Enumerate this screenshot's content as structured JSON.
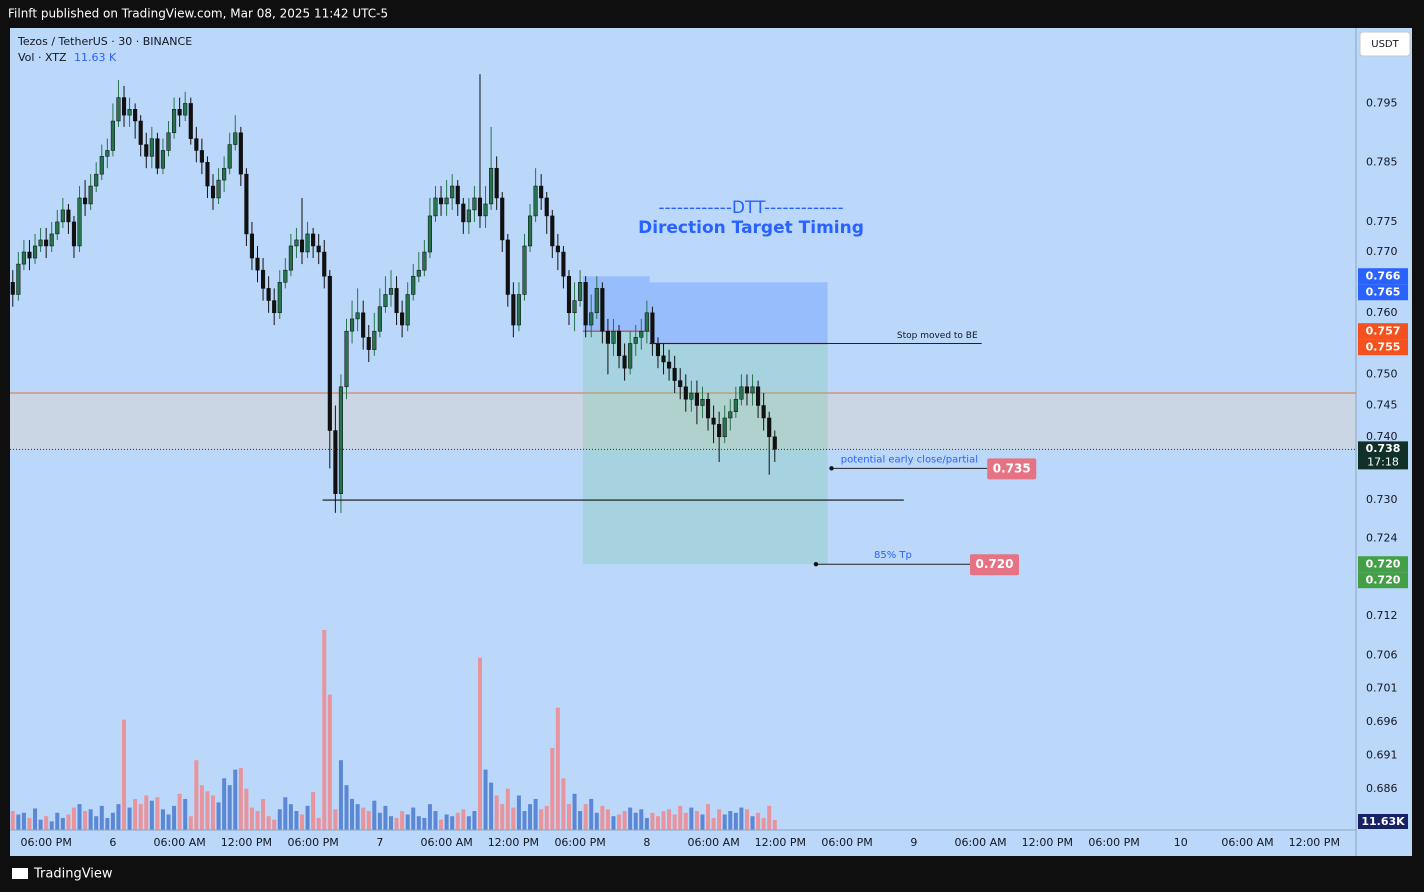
{
  "header": "Filnft published on TradingView.com, Mar 08, 2025 11:42 UTC-5",
  "footer": "TradingView",
  "chart_data": {
    "type": "candlestick",
    "symbol": "Tezos / TetherUS · 30 · BINANCE",
    "volume_legend": "Vol · XTZ",
    "volume_last": "11.63 K",
    "volume_badge": "11.63K",
    "currency": "USDT",
    "dtt_title": "------------DTT-------------",
    "dtt_subtitle": "Direction Target Timing",
    "log_scale": true,
    "ylim": [
      0.68,
      0.808
    ],
    "yticks": [
      0.795,
      0.785,
      0.775,
      {
        "value": 0.77,
        "label": "0.770"
      },
      {
        "value": 0.76,
        "label": "0.760"
      },
      {
        "value": 0.75,
        "label": "0.750"
      },
      0.745,
      {
        "value": 0.74,
        "label": "0.740"
      },
      {
        "value": 0.73,
        "label": "0.730"
      },
      0.724,
      0.712,
      0.706,
      0.701,
      0.696,
      0.691,
      0.686
    ],
    "xlim": [
      -0.5,
      241.5
    ],
    "xticks": [
      {
        "value": 6,
        "label": "06:00 PM"
      },
      {
        "value": 18,
        "label": "6"
      },
      {
        "value": 30,
        "label": "06:00 AM"
      },
      {
        "value": 42,
        "label": "12:00 PM"
      },
      {
        "value": 54,
        "label": "06:00 PM"
      },
      {
        "value": 66,
        "label": "7"
      },
      {
        "value": 78,
        "label": "06:00 AM"
      },
      {
        "value": 90,
        "label": "12:00 PM"
      },
      {
        "value": 102,
        "label": "06:00 PM"
      },
      {
        "value": 114,
        "label": "8"
      },
      {
        "value": 126,
        "label": "06:00 AM"
      },
      {
        "value": 138,
        "label": "12:00 PM"
      },
      {
        "value": 150,
        "label": "06:00 PM"
      },
      {
        "value": 162,
        "label": "9"
      },
      {
        "value": 174,
        "label": "06:00 AM"
      },
      {
        "value": 186,
        "label": "12:00 PM"
      },
      {
        "value": 198,
        "label": "06:00 PM"
      },
      {
        "value": 210,
        "label": "10"
      },
      {
        "value": 222,
        "label": "06:00 AM"
      },
      {
        "value": 234,
        "label": "12:00 PM"
      }
    ],
    "up_color": "#26734d",
    "down_color": "#111111",
    "volume_up_color": "#5b87d4",
    "volume_down_color": "#e8949c",
    "ohlc": [
      [
        0.765,
        0.767,
        0.761,
        0.763
      ],
      [
        0.763,
        0.77,
        0.762,
        0.768
      ],
      [
        0.768,
        0.772,
        0.767,
        0.77
      ],
      [
        0.77,
        0.772,
        0.767,
        0.769
      ],
      [
        0.769,
        0.773,
        0.768,
        0.771
      ],
      [
        0.771,
        0.774,
        0.77,
        0.772
      ],
      [
        0.772,
        0.774,
        0.769,
        0.771
      ],
      [
        0.771,
        0.775,
        0.77,
        0.773
      ],
      [
        0.773,
        0.777,
        0.772,
        0.775
      ],
      [
        0.775,
        0.779,
        0.774,
        0.777
      ],
      [
        0.777,
        0.778,
        0.773,
        0.775
      ],
      [
        0.775,
        0.776,
        0.769,
        0.771
      ],
      [
        0.771,
        0.781,
        0.77,
        0.779
      ],
      [
        0.779,
        0.782,
        0.776,
        0.778
      ],
      [
        0.778,
        0.783,
        0.777,
        0.781
      ],
      [
        0.781,
        0.785,
        0.78,
        0.783
      ],
      [
        0.783,
        0.788,
        0.782,
        0.786
      ],
      [
        0.786,
        0.789,
        0.784,
        0.787
      ],
      [
        0.787,
        0.795,
        0.786,
        0.792
      ],
      [
        0.792,
        0.799,
        0.791,
        0.796
      ],
      [
        0.796,
        0.798,
        0.791,
        0.793
      ],
      [
        0.793,
        0.796,
        0.791,
        0.794
      ],
      [
        0.794,
        0.795,
        0.789,
        0.792
      ],
      [
        0.792,
        0.793,
        0.786,
        0.788
      ],
      [
        0.788,
        0.79,
        0.784,
        0.786
      ],
      [
        0.786,
        0.791,
        0.784,
        0.789
      ],
      [
        0.789,
        0.79,
        0.783,
        0.784
      ],
      [
        0.784,
        0.789,
        0.783,
        0.787
      ],
      [
        0.787,
        0.792,
        0.786,
        0.79
      ],
      [
        0.79,
        0.796,
        0.789,
        0.794
      ],
      [
        0.794,
        0.796,
        0.791,
        0.793
      ],
      [
        0.793,
        0.797,
        0.792,
        0.795
      ],
      [
        0.795,
        0.796,
        0.788,
        0.789
      ],
      [
        0.789,
        0.791,
        0.785,
        0.787
      ],
      [
        0.787,
        0.789,
        0.783,
        0.785
      ],
      [
        0.785,
        0.786,
        0.779,
        0.781
      ],
      [
        0.781,
        0.783,
        0.777,
        0.779
      ],
      [
        0.779,
        0.784,
        0.778,
        0.782
      ],
      [
        0.782,
        0.786,
        0.78,
        0.784
      ],
      [
        0.784,
        0.79,
        0.783,
        0.788
      ],
      [
        0.788,
        0.793,
        0.787,
        0.79
      ],
      [
        0.79,
        0.791,
        0.781,
        0.783
      ],
      [
        0.783,
        0.784,
        0.771,
        0.773
      ],
      [
        0.773,
        0.775,
        0.767,
        0.769
      ],
      [
        0.769,
        0.771,
        0.765,
        0.767
      ],
      [
        0.767,
        0.769,
        0.762,
        0.764
      ],
      [
        0.764,
        0.766,
        0.76,
        0.762
      ],
      [
        0.762,
        0.764,
        0.758,
        0.76
      ],
      [
        0.76,
        0.767,
        0.759,
        0.765
      ],
      [
        0.765,
        0.769,
        0.764,
        0.767
      ],
      [
        0.767,
        0.773,
        0.766,
        0.771
      ],
      [
        0.771,
        0.774,
        0.769,
        0.772
      ],
      [
        0.772,
        0.779,
        0.768,
        0.77
      ],
      [
        0.77,
        0.775,
        0.769,
        0.773
      ],
      [
        0.773,
        0.774,
        0.769,
        0.771
      ],
      [
        0.771,
        0.773,
        0.768,
        0.77
      ],
      [
        0.77,
        0.772,
        0.764,
        0.766
      ],
      [
        0.766,
        0.767,
        0.735,
        0.741
      ],
      [
        0.741,
        0.745,
        0.728,
        0.731
      ],
      [
        0.731,
        0.75,
        0.728,
        0.748
      ],
      [
        0.748,
        0.759,
        0.746,
        0.757
      ],
      [
        0.757,
        0.762,
        0.755,
        0.759
      ],
      [
        0.759,
        0.764,
        0.757,
        0.76
      ],
      [
        0.76,
        0.762,
        0.754,
        0.756
      ],
      [
        0.756,
        0.758,
        0.752,
        0.754
      ],
      [
        0.754,
        0.76,
        0.753,
        0.757
      ],
      [
        0.757,
        0.764,
        0.756,
        0.761
      ],
      [
        0.761,
        0.766,
        0.76,
        0.763
      ],
      [
        0.763,
        0.767,
        0.761,
        0.764
      ],
      [
        0.764,
        0.766,
        0.758,
        0.76
      ],
      [
        0.76,
        0.762,
        0.756,
        0.758
      ],
      [
        0.758,
        0.765,
        0.757,
        0.763
      ],
      [
        0.763,
        0.768,
        0.762,
        0.766
      ],
      [
        0.766,
        0.77,
        0.765,
        0.767
      ],
      [
        0.767,
        0.772,
        0.766,
        0.77
      ],
      [
        0.77,
        0.779,
        0.769,
        0.776
      ],
      [
        0.776,
        0.781,
        0.775,
        0.779
      ],
      [
        0.779,
        0.781,
        0.776,
        0.778
      ],
      [
        0.778,
        0.782,
        0.776,
        0.779
      ],
      [
        0.779,
        0.783,
        0.777,
        0.781
      ],
      [
        0.781,
        0.782,
        0.776,
        0.778
      ],
      [
        0.778,
        0.779,
        0.773,
        0.775
      ],
      [
        0.775,
        0.779,
        0.773,
        0.777
      ],
      [
        0.777,
        0.781,
        0.775,
        0.779
      ],
      [
        0.779,
        0.8,
        0.774,
        0.776
      ],
      [
        0.776,
        0.781,
        0.774,
        0.778
      ],
      [
        0.778,
        0.791,
        0.777,
        0.784
      ],
      [
        0.784,
        0.786,
        0.777,
        0.779
      ],
      [
        0.779,
        0.78,
        0.77,
        0.772
      ],
      [
        0.772,
        0.773,
        0.761,
        0.763
      ],
      [
        0.763,
        0.765,
        0.756,
        0.758
      ],
      [
        0.758,
        0.765,
        0.757,
        0.763
      ],
      [
        0.763,
        0.773,
        0.762,
        0.771
      ],
      [
        0.771,
        0.778,
        0.77,
        0.776
      ],
      [
        0.776,
        0.784,
        0.775,
        0.781
      ],
      [
        0.781,
        0.783,
        0.777,
        0.779
      ],
      [
        0.779,
        0.78,
        0.773,
        0.776
      ],
      [
        0.776,
        0.777,
        0.769,
        0.771
      ],
      [
        0.771,
        0.773,
        0.767,
        0.77
      ],
      [
        0.77,
        0.771,
        0.764,
        0.766
      ],
      [
        0.766,
        0.767,
        0.758,
        0.76
      ],
      [
        0.76,
        0.765,
        0.757,
        0.762
      ],
      [
        0.762,
        0.767,
        0.761,
        0.765
      ],
      [
        0.765,
        0.766,
        0.756,
        0.758
      ],
      [
        0.758,
        0.763,
        0.756,
        0.76
      ],
      [
        0.76,
        0.766,
        0.759,
        0.764
      ],
      [
        0.764,
        0.765,
        0.755,
        0.757
      ],
      [
        0.757,
        0.759,
        0.75,
        0.755
      ],
      [
        0.755,
        0.759,
        0.753,
        0.757
      ],
      [
        0.757,
        0.758,
        0.751,
        0.753
      ],
      [
        0.753,
        0.755,
        0.749,
        0.751
      ],
      [
        0.751,
        0.757,
        0.75,
        0.755
      ],
      [
        0.755,
        0.758,
        0.753,
        0.756
      ],
      [
        0.756,
        0.759,
        0.754,
        0.757
      ],
      [
        0.757,
        0.762,
        0.755,
        0.76
      ],
      [
        0.76,
        0.761,
        0.753,
        0.755
      ],
      [
        0.755,
        0.756,
        0.751,
        0.753
      ],
      [
        0.753,
        0.755,
        0.75,
        0.752
      ],
      [
        0.752,
        0.754,
        0.749,
        0.751
      ],
      [
        0.751,
        0.753,
        0.747,
        0.749
      ],
      [
        0.749,
        0.751,
        0.746,
        0.748
      ],
      [
        0.748,
        0.75,
        0.744,
        0.746
      ],
      [
        0.746,
        0.749,
        0.744,
        0.747
      ],
      [
        0.747,
        0.749,
        0.742,
        0.745
      ],
      [
        0.745,
        0.748,
        0.743,
        0.746
      ],
      [
        0.746,
        0.747,
        0.741,
        0.743
      ],
      [
        0.743,
        0.745,
        0.739,
        0.742
      ],
      [
        0.742,
        0.744,
        0.736,
        0.74
      ],
      [
        0.74,
        0.745,
        0.739,
        0.743
      ],
      [
        0.743,
        0.746,
        0.741,
        0.744
      ],
      [
        0.744,
        0.748,
        0.743,
        0.746
      ],
      [
        0.746,
        0.75,
        0.745,
        0.748
      ],
      [
        0.748,
        0.75,
        0.745,
        0.747
      ],
      [
        0.747,
        0.75,
        0.745,
        0.748
      ],
      [
        0.748,
        0.749,
        0.743,
        0.745
      ],
      [
        0.745,
        0.747,
        0.741,
        0.743
      ],
      [
        0.743,
        0.744,
        0.734,
        0.74
      ],
      [
        0.74,
        0.741,
        0.736,
        0.738
      ]
    ],
    "volume": [
      22,
      18,
      20,
      14,
      25,
      12,
      16,
      10,
      20,
      14,
      18,
      26,
      30,
      22,
      24,
      16,
      28,
      14,
      20,
      30,
      128,
      26,
      36,
      30,
      40,
      34,
      38,
      24,
      18,
      28,
      42,
      36,
      16,
      81,
      52,
      45,
      40,
      32,
      60,
      52,
      70,
      72,
      48,
      26,
      22,
      36,
      16,
      12,
      24,
      38,
      30,
      22,
      18,
      28,
      44,
      14,
      232,
      157,
      24,
      81,
      52,
      36,
      30,
      26,
      22,
      34,
      20,
      28,
      16,
      14,
      22,
      18,
      26,
      16,
      14,
      30,
      22,
      12,
      18,
      16,
      20,
      24,
      16,
      22,
      200,
      70,
      55,
      40,
      30,
      48,
      26,
      40,
      22,
      30,
      36,
      24,
      28,
      95,
      142,
      60,
      30,
      42,
      22,
      30,
      36,
      20,
      28,
      24,
      16,
      18,
      22,
      26,
      20,
      24,
      14,
      20,
      16,
      22,
      24,
      18,
      28,
      20,
      26,
      22,
      18,
      30,
      14,
      24,
      18,
      22,
      20,
      26,
      24,
      16,
      20,
      14,
      28,
      11.63
    ],
    "zone": [
      0.747,
      0.738
    ],
    "levels": [
      {
        "value": 0.747,
        "color": "#e0703c"
      }
    ],
    "support": {
      "value": 0.73,
      "from": 55.7,
      "to": 160.2
    },
    "positions": [
      {
        "from": 102.5,
        "to": 114.5,
        "stop": 0.766,
        "entry": 0.757,
        "target": 0.72
      },
      {
        "from": 114.5,
        "to": 146.5,
        "stop": 0.765,
        "entry": 0.755,
        "target": 0.72
      }
    ],
    "be_line": {
      "text": "Stop moved to BE",
      "value": 0.755,
      "from": 114.5,
      "to": 174.2
    },
    "targets": [
      {
        "text": "potential early close/partial",
        "value": 0.735,
        "label": "0.735",
        "from": 147.2,
        "to": 175.2
      },
      {
        "text": "85% Tp",
        "value": 0.72,
        "label": "0.720",
        "from": 144.4,
        "to": 172.1
      }
    ],
    "price_badges": [
      {
        "value": 0.766,
        "label": "0.766",
        "color": "#2962ff"
      },
      {
        "value": 0.765,
        "label": "0.765",
        "color": "#2962ff"
      },
      {
        "value": 0.757,
        "label": "0.757",
        "color": "#f4511e"
      },
      {
        "value": 0.755,
        "label": "0.755",
        "color": "#f4511e"
      },
      {
        "value": 0.72,
        "label": "0.720",
        "color": "#43a047"
      },
      {
        "value": 0.72,
        "label": "0.720",
        "color": "#43a047"
      }
    ],
    "last_price": {
      "value": 0.738,
      "label": "0.738",
      "countdown": "17:18",
      "color": "#12302a"
    }
  }
}
